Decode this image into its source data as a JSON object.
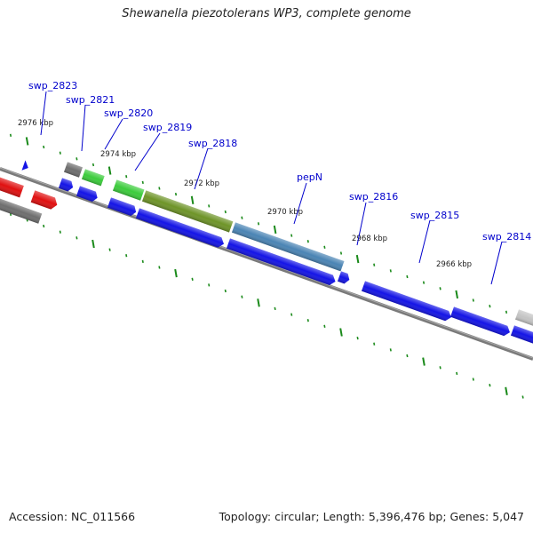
{
  "header": {
    "title": "Shewanella piezotolerans WP3, complete genome"
  },
  "footer": {
    "accession": "Accession: NC_011566",
    "summary": "Topology: circular; Length: 5,396,476 bp; Genes: 5,047"
  },
  "ticks": [
    {
      "label": "2976 kbp"
    },
    {
      "label": "2974 kbp"
    },
    {
      "label": "2972 kbp"
    },
    {
      "label": "2970 kbp"
    },
    {
      "label": "2968 kbp"
    },
    {
      "label": "2966 kbp"
    }
  ],
  "genes": [
    {
      "name": "swp_2823"
    },
    {
      "name": "swp_2821"
    },
    {
      "name": "swp_2820"
    },
    {
      "name": "swp_2819"
    },
    {
      "name": "swp_2818"
    },
    {
      "name": "pepN"
    },
    {
      "name": "swp_2816"
    },
    {
      "name": "swp_2815"
    },
    {
      "name": "swp_2814"
    }
  ],
  "colors": {
    "cds_blue": "#1414e6",
    "red": "#e01010",
    "dark_gray": "#6e6e6e",
    "light_gray": "#c4c4c4",
    "green": "#3ccc3c",
    "olive": "#6e9428",
    "steel_blue": "#4a84b4",
    "backbone": "#7a7a7a",
    "tick_green": "#1a8a1a",
    "label_blue": "#0000cc"
  }
}
